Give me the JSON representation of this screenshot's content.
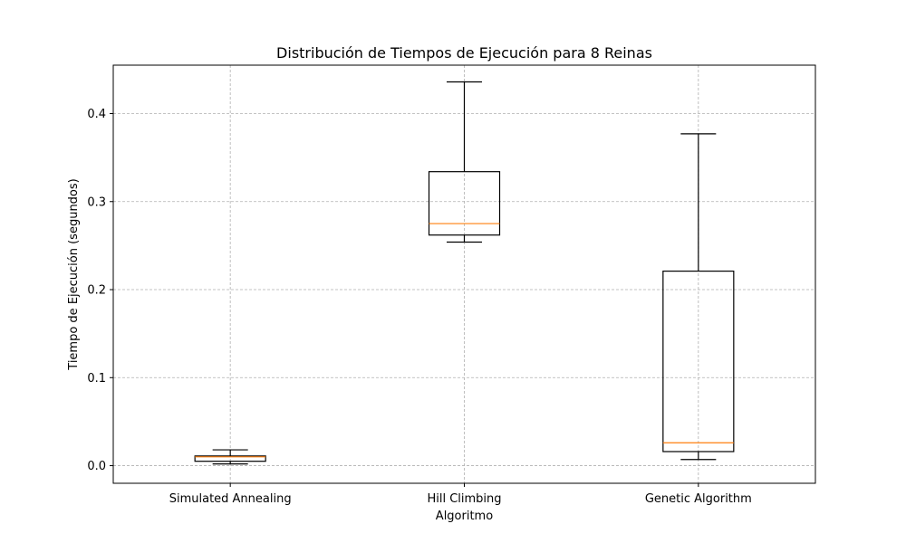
{
  "chart_data": {
    "type": "boxplot",
    "title": "Distribución de Tiempos de Ejecución para 8 Reinas",
    "xlabel": "Algoritmo",
    "ylabel": "Tiempo de Ejecución (segundos)",
    "ylim": [
      -0.02,
      0.455
    ],
    "yticks": [
      0.0,
      0.1,
      0.2,
      0.3,
      0.4
    ],
    "ytick_labels": [
      "0.0",
      "0.1",
      "0.2",
      "0.3",
      "0.4"
    ],
    "grid": true,
    "categories": [
      "Simulated Annealing",
      "Hill Climbing",
      "Genetic Algorithm"
    ],
    "boxes": [
      {
        "whisker_low": 0.002,
        "q1": 0.005,
        "median": 0.01,
        "q3": 0.011,
        "whisker_high": 0.018
      },
      {
        "whisker_low": 0.254,
        "q1": 0.262,
        "median": 0.275,
        "q3": 0.334,
        "whisker_high": 0.436
      },
      {
        "whisker_low": 0.007,
        "q1": 0.016,
        "median": 0.026,
        "q3": 0.221,
        "whisker_high": 0.377
      }
    ],
    "colors": {
      "box": "#000000",
      "median": "#ff7f0e",
      "grid": "#b0b0b0"
    }
  }
}
